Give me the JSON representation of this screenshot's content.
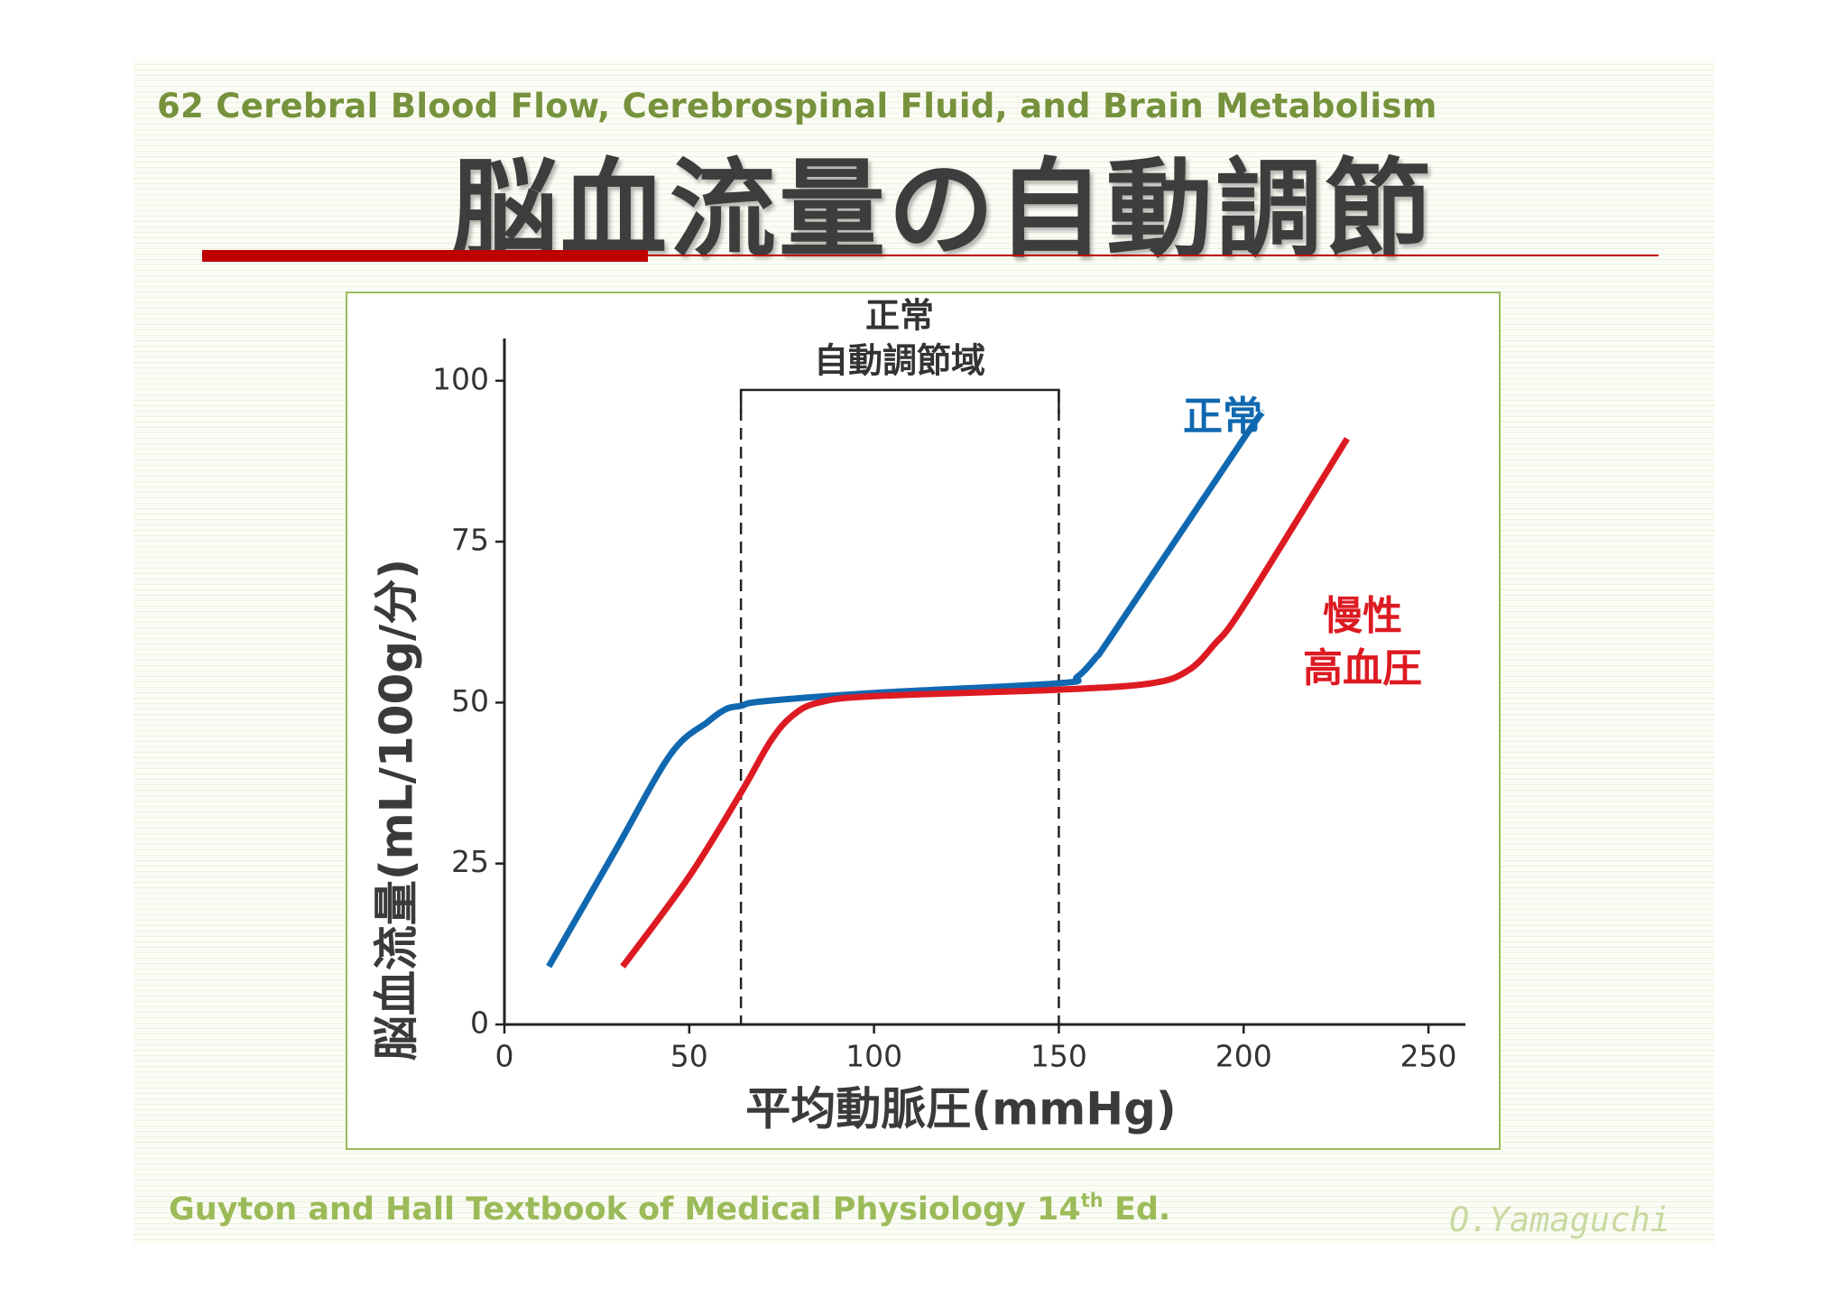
{
  "slide": {
    "subtitle": "62 Cerebral Blood Flow, Cerebrospinal Fluid, and Brain Metabolism",
    "title": "脳血流量の自動調節",
    "source_text": "Guyton and Hall Textbook of Medical Physiology 14",
    "source_sup": "th",
    "source_suffix": " Ed.",
    "author": "O.Yamaguchi",
    "accent_color": "#c00000",
    "subtitle_color": "#76923c"
  },
  "chart_data": {
    "type": "line",
    "xlabel": "平均動脈圧(mmHg)",
    "ylabel": "脳血流量(mL/100g/分)",
    "xlim": [
      0,
      260
    ],
    "ylim": [
      0,
      106
    ],
    "xticks": [
      0,
      50,
      100,
      150,
      200,
      250
    ],
    "yticks": [
      0,
      25,
      50,
      75,
      100
    ],
    "grid": false,
    "region": {
      "label_line1": "正常",
      "label_line2": "自動調節域",
      "x_start": 64,
      "x_end": 150
    },
    "series": [
      {
        "name": "正常",
        "label_lines": [
          "正常"
        ],
        "color": "#1068b0",
        "x": [
          12,
          30,
          45,
          55,
          60,
          64,
          70,
          100,
          150,
          155,
          160,
          165,
          200,
          205
        ],
        "y": [
          9,
          27,
          42,
          47,
          49,
          49.5,
          50.2,
          51.5,
          53,
          54,
          57,
          61,
          91,
          95
        ]
      },
      {
        "name": "慢性高血圧",
        "label_lines": [
          "慢性",
          "高血圧"
        ],
        "color": "#dd1a22",
        "x": [
          32,
          50,
          64,
          72,
          78,
          85,
          100,
          150,
          175,
          185,
          192,
          200,
          228
        ],
        "y": [
          9,
          23,
          36,
          44,
          48,
          50,
          51,
          52,
          53,
          55,
          59,
          65,
          91
        ]
      }
    ]
  }
}
